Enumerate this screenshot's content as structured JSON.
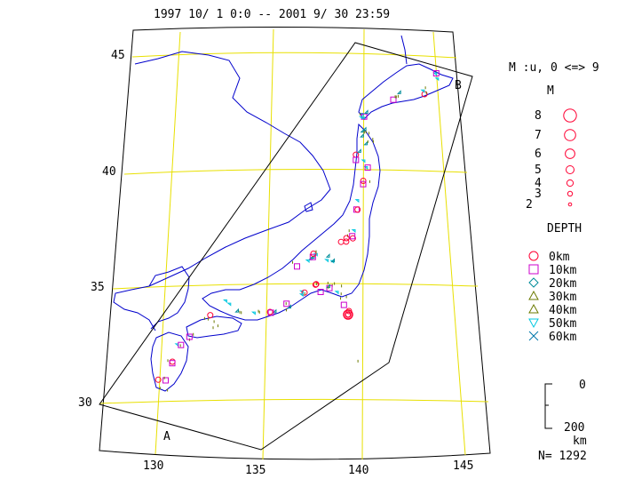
{
  "title": "1997 10/ 1  0:0 -- 2001  9/ 30  23:59",
  "lat_labels": [
    "45",
    "40",
    "35",
    "30"
  ],
  "lon_labels": [
    "130",
    "135",
    "140",
    "145"
  ],
  "section_labels": {
    "start": "A",
    "end": "B"
  },
  "magnitude_legend": {
    "heading": "M :u, 0 <=> 9",
    "subheading": "M",
    "entries": [
      {
        "label": "8",
        "magnitude": 8
      },
      {
        "label": "7",
        "magnitude": 7
      },
      {
        "label": "6",
        "magnitude": 6
      },
      {
        "label": "5",
        "magnitude": 5
      },
      {
        "label": "4",
        "magnitude": 4
      },
      {
        "label": "3",
        "magnitude": 3
      },
      {
        "label": "2",
        "magnitude": 2
      }
    ]
  },
  "depth_legend": {
    "heading": "DEPTH",
    "entries": [
      {
        "label": "0km",
        "symbol": "circle",
        "color": "#ff0033"
      },
      {
        "label": "10km",
        "symbol": "square",
        "color": "#cc00cc"
      },
      {
        "label": "20km",
        "symbol": "diamond",
        "color": "#008c99"
      },
      {
        "label": "30km",
        "symbol": "triangle-up",
        "color": "#6b7a00"
      },
      {
        "label": "40km",
        "symbol": "triangle-up",
        "color": "#6b7a00"
      },
      {
        "label": "50km",
        "symbol": "triangle-down",
        "color": "#00c8e0"
      },
      {
        "label": "60km",
        "symbol": "cross",
        "color": "#0077aa"
      }
    ]
  },
  "scale_bar": {
    "top_label": "0",
    "bottom_label": "200",
    "unit": "km"
  },
  "count_label": "N= 1292",
  "colors": {
    "grid": "#e8e000",
    "coast": "#0000cc",
    "frame": "#000000"
  }
}
